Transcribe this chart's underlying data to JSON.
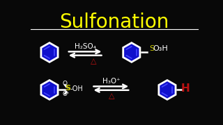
{
  "title": "Sulfonation",
  "title_color": "#FFFF00",
  "title_fontsize": 20,
  "bg_color": "#080808",
  "white": "#FFFFFF",
  "blue_dark": "#1010CC",
  "blue_inner": "#000088",
  "yellow": "#CCCC00",
  "red": "#BB1111",
  "h2so4_label": "H₂SO₄",
  "so3h_s": "S",
  "so3h_rest": "O₃H",
  "h3o_label": "H₃O⁺",
  "h_label": "H",
  "delta": "△"
}
